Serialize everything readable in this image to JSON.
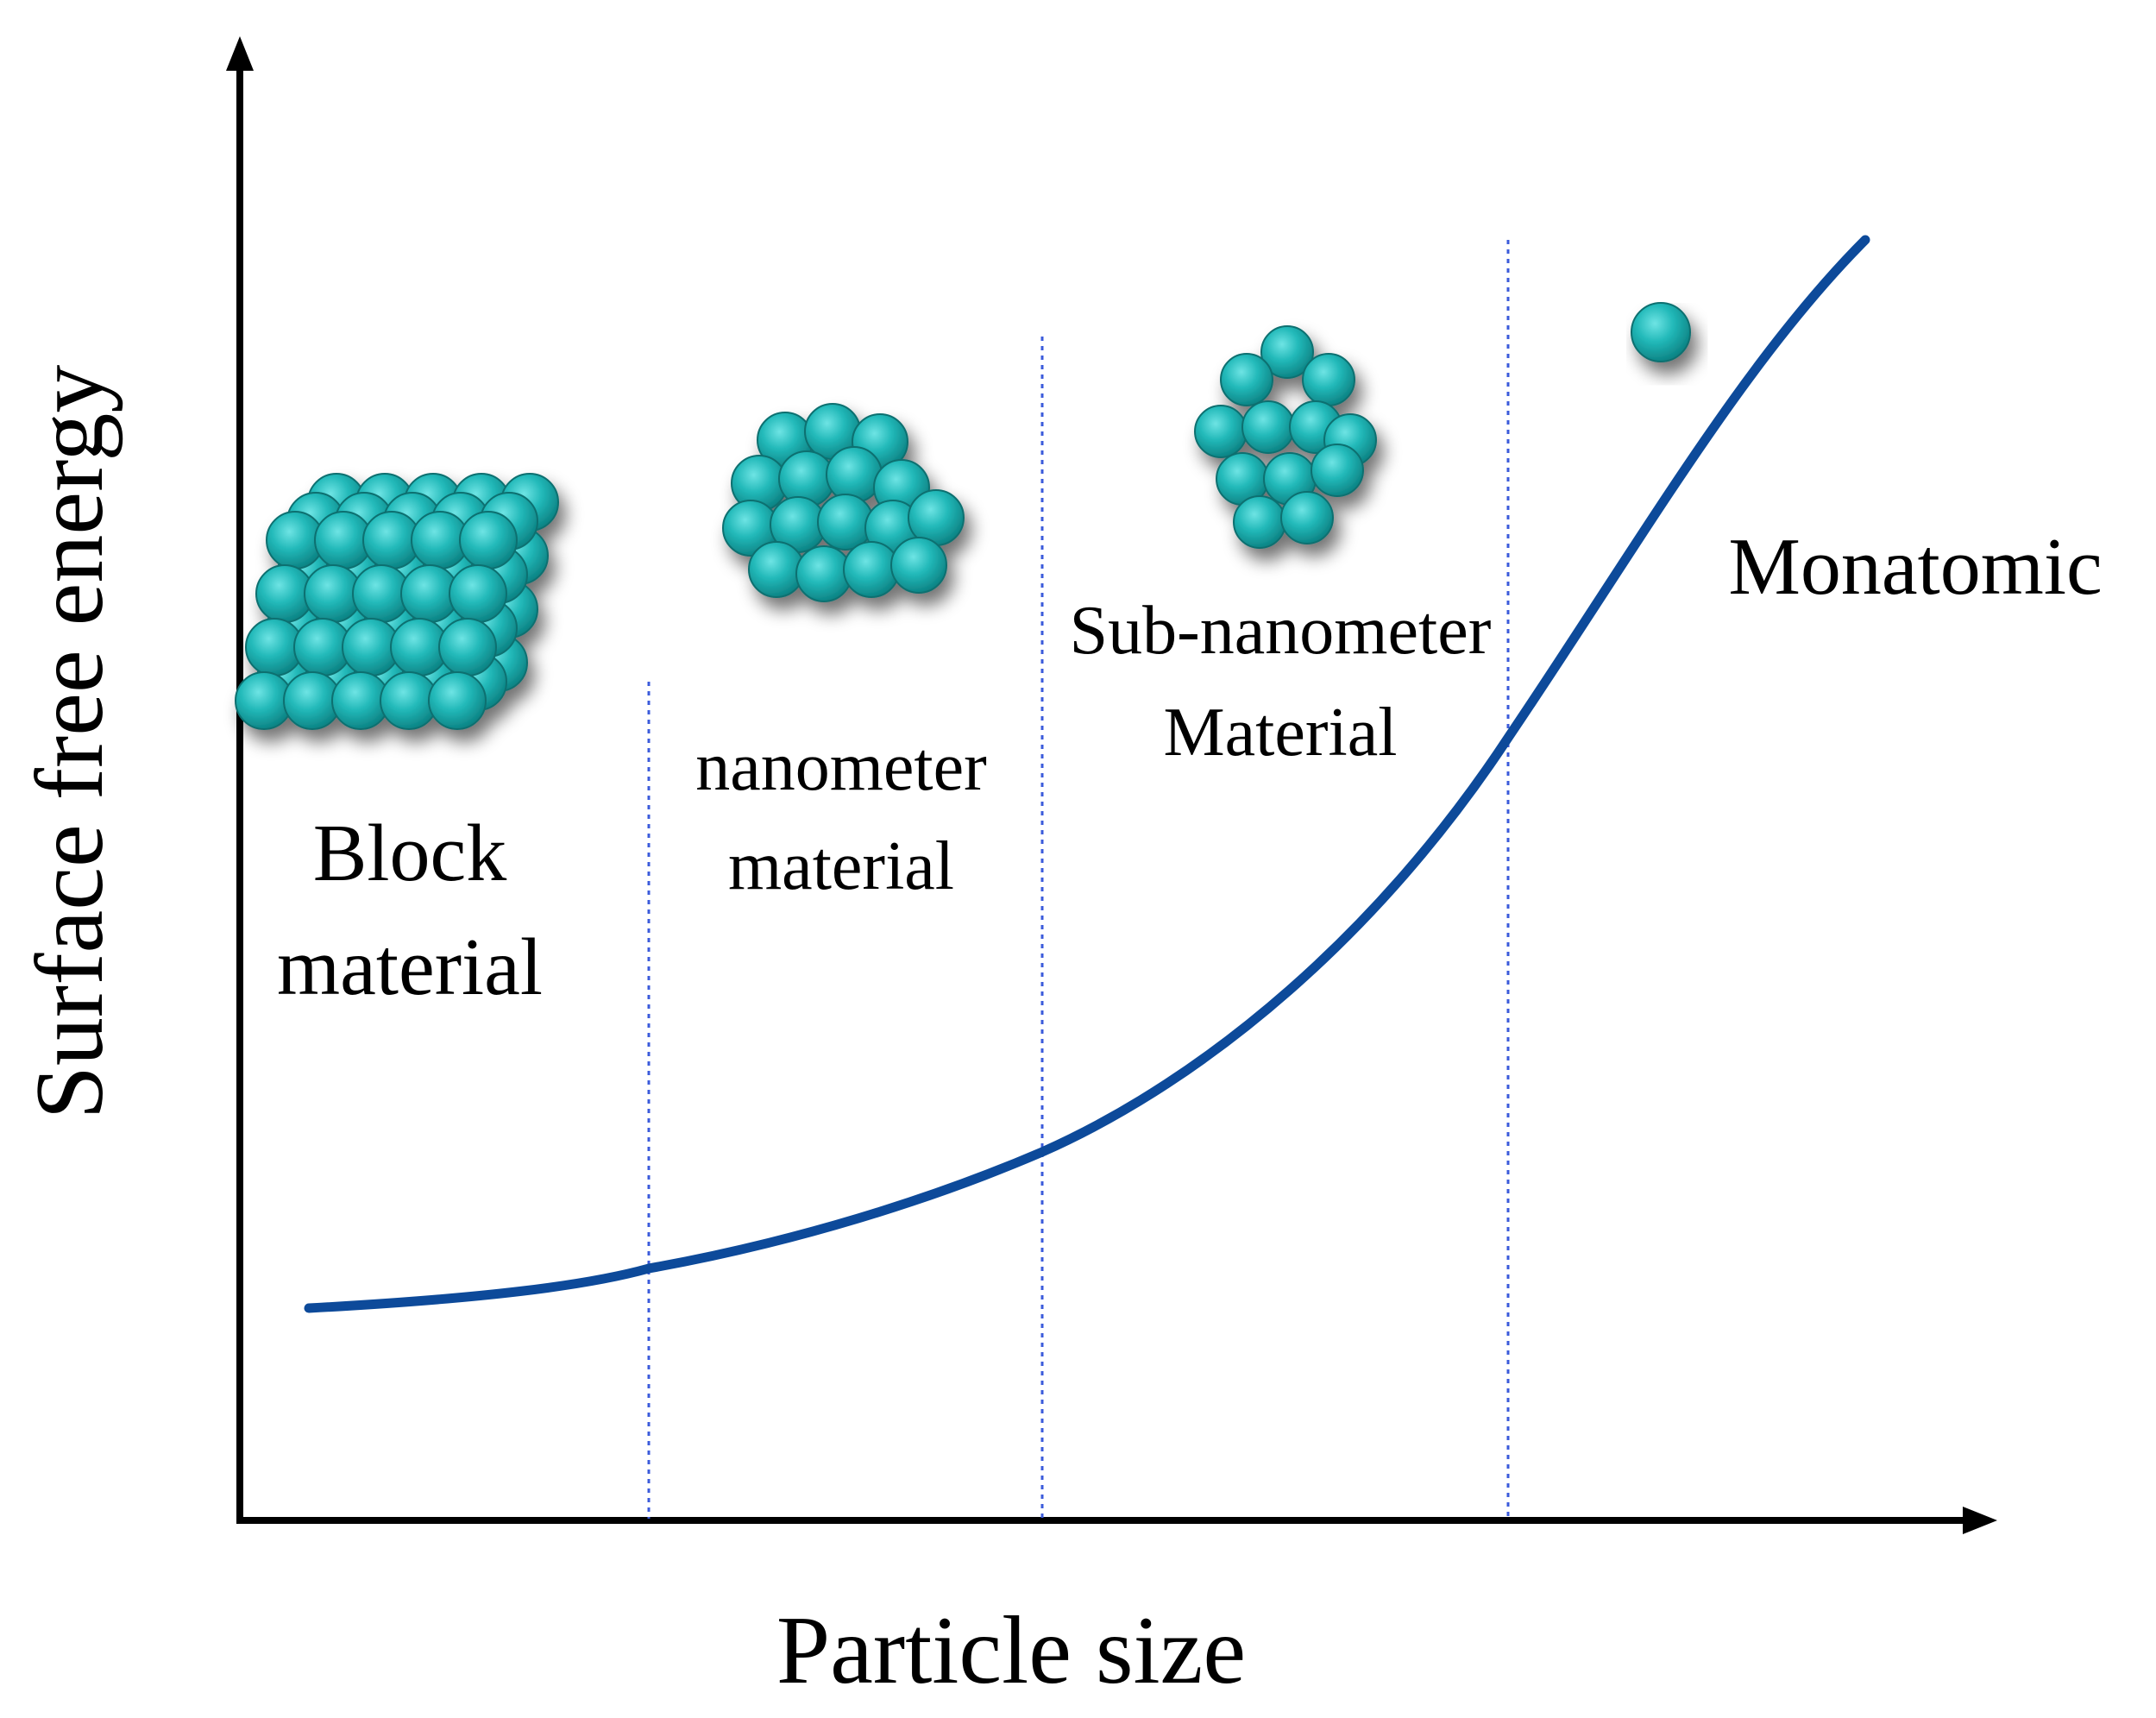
{
  "axes": {
    "x_label": "Particle size",
    "y_label": "Surface free energy"
  },
  "regions": [
    {
      "id": "block",
      "lines": [
        "Block",
        "material"
      ]
    },
    {
      "id": "nano",
      "lines": [
        "nanometer",
        "material"
      ]
    },
    {
      "id": "subnano",
      "lines": [
        "Sub-nanometer",
        "Material"
      ]
    },
    {
      "id": "mono",
      "lines": [
        "Monatomic"
      ]
    }
  ],
  "colors": {
    "curve": "#0d4a9a",
    "divider": "#3b5bdb",
    "atom": "#1bb0b0",
    "axis": "#000000"
  }
}
